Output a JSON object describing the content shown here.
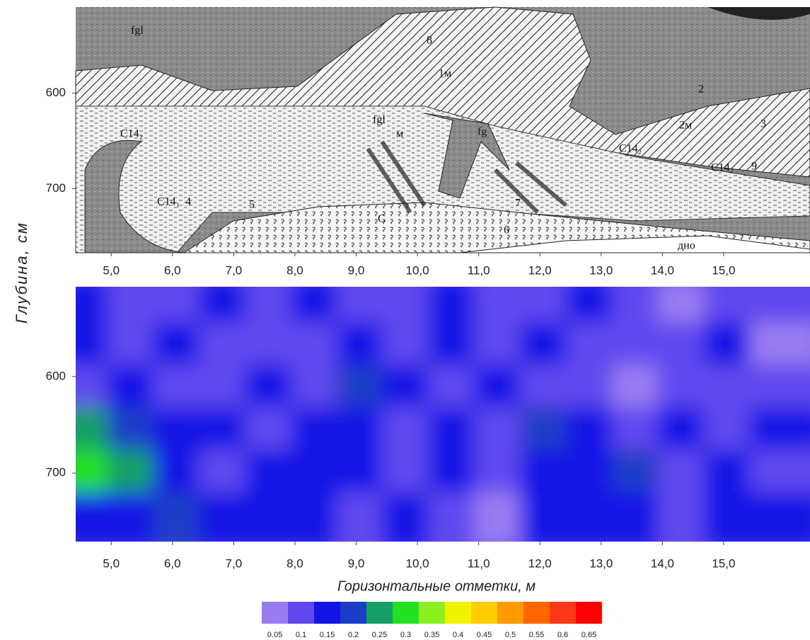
{
  "chart_data": [
    {
      "type": "section",
      "xlim": [
        4.42,
        16.41
      ],
      "ylim": [
        767,
        510
      ],
      "xticks": [
        {
          "value": 5,
          "label": "5,0"
        },
        {
          "value": 6,
          "label": "6,0"
        },
        {
          "value": 7,
          "label": "7,0"
        },
        {
          "value": 8,
          "label": "8,0"
        },
        {
          "value": 9,
          "label": "9,0"
        },
        {
          "value": 10,
          "label": "10,0"
        },
        {
          "value": 11,
          "label": "11,0"
        },
        {
          "value": 12,
          "label": "12,0"
        },
        {
          "value": 13,
          "label": "13,0"
        },
        {
          "value": 14,
          "label": "14,0"
        },
        {
          "value": 15,
          "label": "15,0"
        }
      ],
      "yticks": [
        600,
        700
      ],
      "labels": [
        "fgl",
        "8",
        "1м",
        "2",
        "2м",
        "3",
        "С14₂",
        "fgl",
        "м",
        "fg",
        "С14₂",
        "С14₂",
        "9",
        "С14₁",
        "4",
        "5",
        "7",
        "С",
        "6",
        "дно"
      ]
    },
    {
      "type": "contour",
      "xlim": [
        4.42,
        16.41
      ],
      "ylim": [
        771,
        507
      ],
      "xticks": [
        {
          "value": 5,
          "label": "5,0"
        },
        {
          "value": 6,
          "label": "6,0"
        },
        {
          "value": 7,
          "label": "7,0"
        },
        {
          "value": 8,
          "label": "8,0"
        },
        {
          "value": 9,
          "label": "9,0"
        },
        {
          "value": 10,
          "label": "10,0"
        },
        {
          "value": 11,
          "label": "11,0"
        },
        {
          "value": 12,
          "label": "12,0"
        },
        {
          "value": 13,
          "label": "13,0"
        },
        {
          "value": 14,
          "label": "14,0"
        },
        {
          "value": 15,
          "label": "15,0"
        }
      ],
      "yticks": [
        600,
        700
      ],
      "x_label": "Горизонтальные отметки, м",
      "y_label": "Глубина, см",
      "x": [
        4.79,
        5.54,
        6.29,
        7.04,
        7.79,
        8.54,
        9.29,
        10.03,
        10.78,
        11.53,
        12.28,
        13.03,
        13.78,
        14.53,
        15.28,
        16.03
      ],
      "y": [
        529,
        573,
        617,
        661,
        705,
        749
      ],
      "values": [
        [
          0.15,
          0.1,
          0.1,
          0.15,
          0.1,
          0.15,
          0.1,
          0.1,
          0.15,
          0.1,
          0.1,
          0.15,
          0.1,
          0.05,
          0.1,
          0.1
        ],
        [
          0.15,
          0.1,
          0.15,
          0.1,
          0.1,
          0.1,
          0.15,
          0.1,
          0.15,
          0.1,
          0.15,
          0.1,
          0.1,
          0.1,
          0.15,
          0.05
        ],
        [
          0.1,
          0.15,
          0.1,
          0.1,
          0.15,
          0.1,
          0.2,
          0.15,
          0.1,
          0.15,
          0.1,
          0.1,
          0.05,
          0.1,
          0.1,
          0.1
        ],
        [
          0.25,
          0.2,
          0.15,
          0.15,
          0.1,
          0.15,
          0.15,
          0.1,
          0.15,
          0.1,
          0.2,
          0.15,
          0.1,
          0.15,
          0.1,
          0.15
        ],
        [
          0.3,
          0.25,
          0.15,
          0.1,
          0.15,
          0.15,
          0.15,
          0.1,
          0.15,
          0.1,
          0.15,
          0.15,
          0.2,
          0.1,
          0.15,
          0.1
        ],
        [
          0.15,
          0.15,
          0.2,
          0.15,
          0.15,
          0.15,
          0.1,
          0.15,
          0.1,
          0.05,
          0.15,
          0.15,
          0.15,
          0.1,
          0.15,
          0.15
        ]
      ],
      "colorbar": {
        "levels": [
          0.05,
          0.1,
          0.15,
          0.2,
          0.25,
          0.3,
          0.35,
          0.4,
          0.45,
          0.5,
          0.55,
          0.6,
          0.65
        ],
        "colors": [
          "#9a7cf2",
          "#5e48ee",
          "#1414e6",
          "#1a3ec6",
          "#18a064",
          "#22e022",
          "#8cf020",
          "#f2f200",
          "#ffcc00",
          "#ff9a00",
          "#ff6600",
          "#ff3818",
          "#ff0000"
        ]
      }
    }
  ]
}
